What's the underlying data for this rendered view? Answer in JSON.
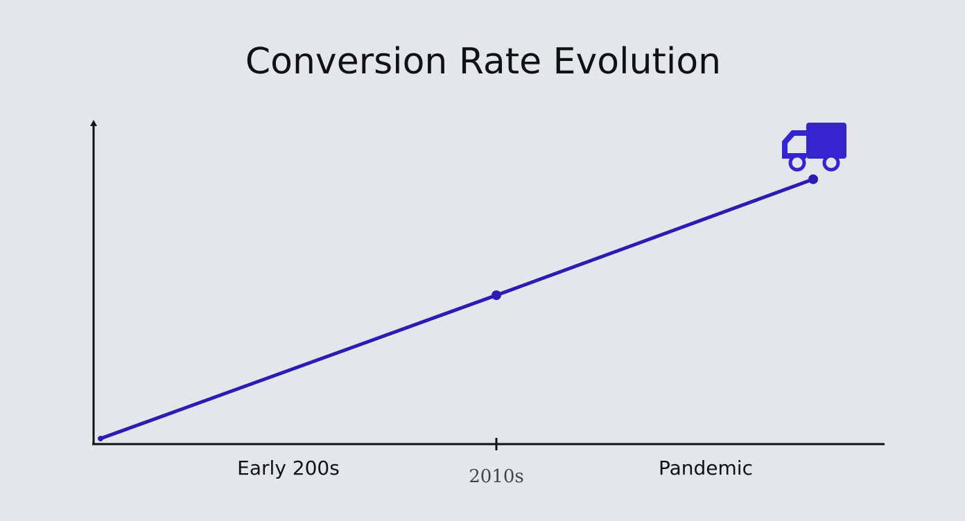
{
  "chart_data": {
    "type": "line",
    "title": "Conversion Rate Evolution",
    "categories": [
      "Early 200s",
      "2010s",
      "Pandemic"
    ],
    "values": [
      1.5,
      46,
      82
    ],
    "color": "#2a1db3",
    "ylim": [
      0,
      100
    ]
  }
}
